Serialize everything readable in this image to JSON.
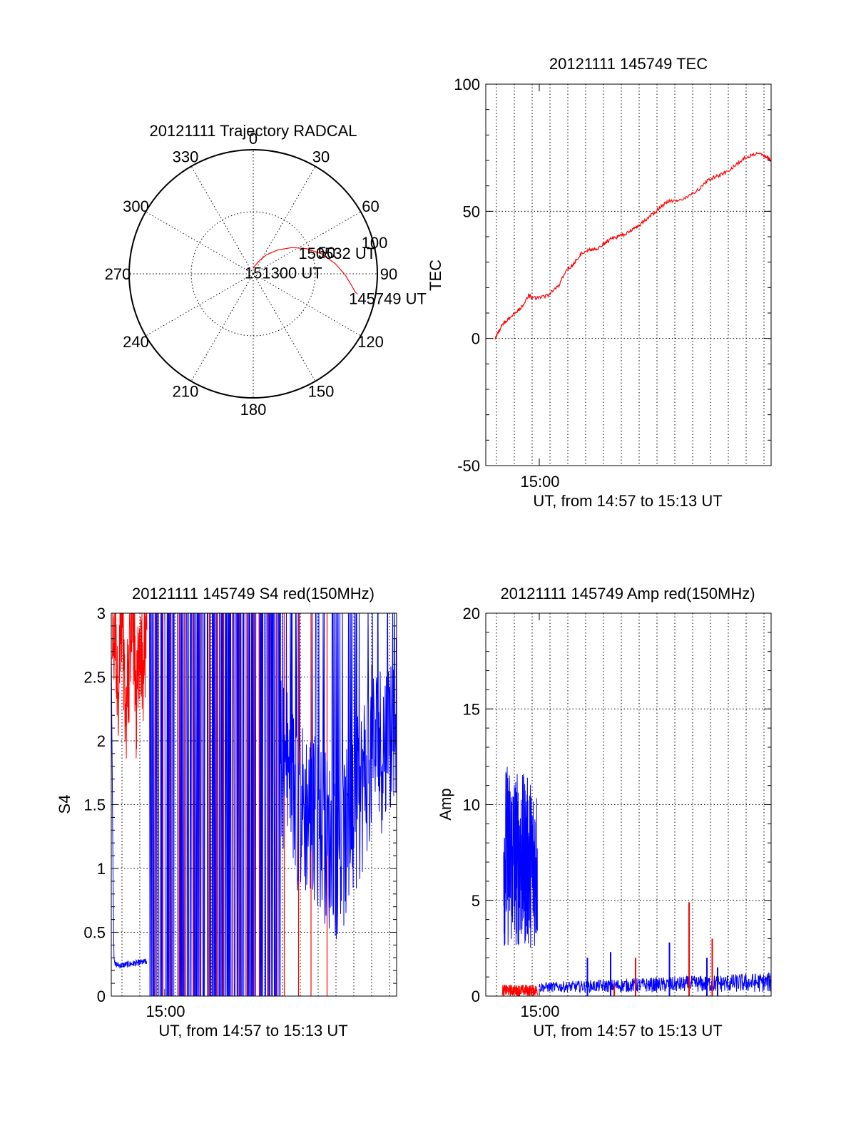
{
  "chart_data": [
    {
      "type": "polar",
      "title": "20121111 Trajectory RADCAL",
      "angle_labels": [
        "0",
        "30",
        "60",
        "90",
        "120",
        "150",
        "180",
        "210",
        "240",
        "270",
        "300",
        "330"
      ],
      "radial_tick_labels": [
        "50",
        "100"
      ],
      "radial_max": 100,
      "grid": true,
      "series": [
        {
          "color": "#ff0000",
          "azimuth": [
            -1,
            12,
            24,
            35,
            46,
            56,
            65,
            74,
            83,
            91,
            97,
            100,
            101
          ],
          "elevation": [
            86,
            84,
            80,
            73,
            65,
            56,
            47,
            38,
            30,
            23,
            18,
            15,
            13
          ]
        }
      ],
      "annotations": [
        {
          "text": "151300 UT",
          "azimuth": -1,
          "elevation": 86
        },
        {
          "text": "150532 UT",
          "azimuth": 65,
          "elevation": 47
        },
        {
          "text": "145749 UT",
          "azimuth": 101,
          "elevation": 13
        }
      ]
    },
    {
      "type": "line",
      "title": "20121111 145749 TEC",
      "ylabel": "TEC",
      "xlabel": "UT, from 14:57 to 15:13 UT",
      "xtick_labels": [
        "15:00"
      ],
      "ylim": [
        -50,
        100
      ],
      "yticks": [
        -50,
        0,
        50,
        100
      ],
      "grid": true,
      "series": [
        {
          "color": "#ff0000",
          "x_minutes": [
            0.52,
            0.9,
            1.3,
            1.8,
            2.1,
            2.4,
            2.6,
            3.0,
            3.5,
            4.1,
            4.5,
            4.9,
            5.3,
            5.8,
            6.2,
            6.6,
            7.0,
            7.4,
            7.8,
            8.3,
            8.7,
            9.2,
            9.7,
            10.2,
            10.8,
            11.4,
            12.0,
            12.6,
            13.1,
            13.6,
            14.0,
            14.5,
            14.9,
            15.4,
            15.8,
            16.0
          ],
          "values": [
            0,
            5,
            8,
            11,
            13,
            17,
            16,
            16,
            17,
            21,
            27,
            29,
            33,
            35,
            35,
            37,
            39,
            40,
            41,
            43,
            45,
            48,
            51,
            54,
            54,
            56,
            59,
            63,
            64,
            66,
            68,
            71,
            72,
            73,
            71,
            70
          ]
        }
      ]
    },
    {
      "type": "line",
      "title": "20121111 145749 S4 red(150MHz)",
      "ylabel": "S4",
      "xlabel": "UT, from 14:57 to 15:13 UT",
      "xtick_labels": [
        "15:00"
      ],
      "ylim": [
        0,
        3
      ],
      "yticks": [
        0,
        0.5,
        1,
        1.5,
        2,
        2.5,
        3
      ],
      "ytick_labels": [
        "0",
        "0.5",
        "1",
        "1.5",
        "2",
        "2.5",
        "3"
      ],
      "grid": true,
      "series": [
        {
          "color": "#ff0000",
          "x_minutes": [
            0.0,
            0.2,
            0.4,
            0.6,
            0.8,
            1.0,
            1.2,
            1.4,
            1.6,
            1.8,
            2.0
          ],
          "values": [
            2.9,
            2.6,
            2.2,
            2.8,
            2.0,
            2.4,
            2.9,
            2.1,
            2.7,
            2.3,
            2.9
          ]
        },
        {
          "color": "#0000ff",
          "x_minutes": [
            0.0,
            0.05,
            0.1,
            0.15,
            0.2,
            0.5,
            1.0,
            1.5,
            2.0
          ],
          "values": [
            2.7,
            1.8,
            0.9,
            0.3,
            0.25,
            0.24,
            0.25,
            0.26,
            0.27
          ]
        },
        {
          "color": "#0000ff",
          "x_minutes": [
            9.5,
            10.5,
            11.5,
            12.5,
            13.5,
            14.5,
            15.5,
            16.0
          ],
          "values": [
            1.9,
            1.5,
            1.4,
            1.1,
            1.3,
            1.9,
            2.0,
            2.3
          ]
        }
      ]
    },
    {
      "type": "line",
      "title": "20121111 145749 Amp red(150MHz)",
      "ylabel": "Amp",
      "xlabel": "UT, from 14:57 to 15:13 UT",
      "xtick_labels": [
        "15:00"
      ],
      "ylim": [
        0,
        20
      ],
      "yticks": [
        0,
        5,
        10,
        15,
        20
      ],
      "grid": true,
      "series": [
        {
          "color": "#ff0000",
          "x_minutes": [
            0.9,
            2.9,
            7.2,
            8.4,
            11.4,
            12.7
          ],
          "values": [
            0.5,
            0.5,
            0.6,
            2.0,
            4.9,
            3.0
          ]
        },
        {
          "color": "#0000ff",
          "x_minutes": [
            0.9,
            1.0,
            2.2,
            2.9,
            3.0,
            5.7,
            7.0,
            10.3,
            12.4,
            13.0,
            16.0
          ],
          "values": [
            0.5,
            12.3,
            12.0,
            11.0,
            0.4,
            2.0,
            2.3,
            2.8,
            2.0,
            1.5,
            1.3
          ]
        }
      ]
    }
  ]
}
